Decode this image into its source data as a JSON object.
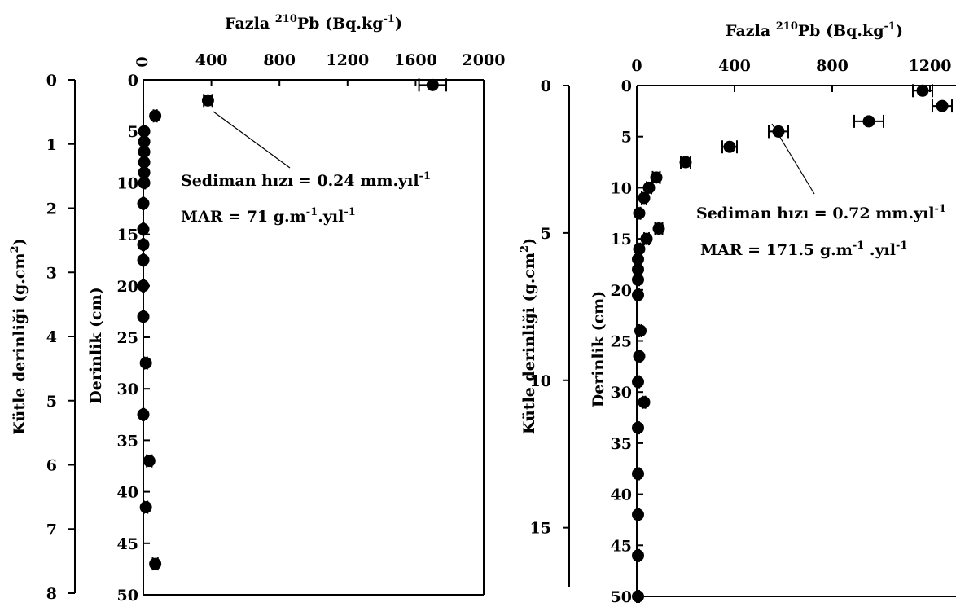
{
  "chart_data": [
    {
      "type": "scatter",
      "top_axis": {
        "label_main": "Fazla ",
        "label_sup": "210",
        "label_rest": "Pb (Bq.kg",
        "label_exp": "-1",
        "label_close": ")",
        "ticks": [
          "0",
          "400",
          "800",
          "1200",
          "1600",
          "2000"
        ],
        "lim": [
          0,
          2000
        ]
      },
      "depth_axis": {
        "label": "Derinlik (cm)",
        "ticks": [
          "0",
          "5",
          "10",
          "15",
          "20",
          "25",
          "30",
          "35",
          "40",
          "45",
          "50"
        ],
        "lim": [
          0,
          50
        ]
      },
      "mass_axis": {
        "label_main": "Kütle derinliği (g.cm",
        "label_exp": "2",
        "label_close": ")",
        "ticks": [
          "0",
          "1",
          "2",
          "3",
          "4",
          "5",
          "6",
          "7",
          "8"
        ],
        "lim": [
          0,
          8
        ]
      },
      "annotation_line1": {
        "text": "Sediman hızı = 0.24 mm.yıl",
        "exp": "-1"
      },
      "annotation_line2": {
        "pre": "MAR = 71 g.m",
        "exp1": "-1",
        "mid": ".yıl",
        "exp2": "-1"
      },
      "points": [
        {
          "x": 1700,
          "depth": 0.5,
          "err": 80
        },
        {
          "x": 380,
          "depth": 2,
          "err": 25
        },
        {
          "x": 70,
          "depth": 3.5,
          "err": 10
        },
        {
          "x": 5,
          "depth": 5,
          "err": 5
        },
        {
          "x": 5,
          "depth": 6,
          "err": 5
        },
        {
          "x": 5,
          "depth": 7,
          "err": 5
        },
        {
          "x": 5,
          "depth": 8,
          "err": 5
        },
        {
          "x": 5,
          "depth": 9,
          "err": 5
        },
        {
          "x": 5,
          "depth": 10,
          "err": 5
        },
        {
          "x": 0,
          "depth": 12,
          "err": 5
        },
        {
          "x": 0,
          "depth": 14.5,
          "err": 5
        },
        {
          "x": 0,
          "depth": 16,
          "err": 5
        },
        {
          "x": 0,
          "depth": 17.5,
          "err": 5
        },
        {
          "x": 0,
          "depth": 20,
          "err": 5
        },
        {
          "x": 0,
          "depth": 23,
          "err": 5
        },
        {
          "x": 15,
          "depth": 27.5,
          "err": 8
        },
        {
          "x": 0,
          "depth": 32.5,
          "err": 5
        },
        {
          "x": 35,
          "depth": 37,
          "err": 15
        },
        {
          "x": 15,
          "depth": 41.5,
          "err": 10
        },
        {
          "x": 70,
          "depth": 47,
          "err": 15
        }
      ]
    },
    {
      "type": "scatter",
      "top_axis": {
        "label_main": "Fazla ",
        "label_sup": "210",
        "label_rest": "Pb (Bq.kg",
        "label_exp": "-1",
        "label_close": ")",
        "ticks": [
          "0",
          "400",
          "800",
          "1200"
        ],
        "lim": [
          0,
          1400
        ]
      },
      "depth_axis": {
        "label": "Derinlik (cm)",
        "ticks": [
          "0",
          "5",
          "10",
          "15",
          "20",
          "25",
          "30",
          "35",
          "40",
          "45",
          "50"
        ],
        "lim": [
          0,
          50
        ]
      },
      "mass_axis": {
        "label_main": "Kütle derinliği (g.cm",
        "label_exp": "2",
        "label_close": ")",
        "ticks": [
          "0",
          "5",
          "10",
          "15"
        ],
        "lim": [
          0,
          17
        ]
      },
      "annotation_line1": {
        "text": "Sediman hızı = 0.72 mm.yıl",
        "exp": "-1"
      },
      "annotation_line2": {
        "pre": "MAR = 171.5 g.m",
        "exp1": "-1",
        "mid": "  .yıl",
        "exp2": "-1"
      },
      "points": [
        {
          "x": 1170,
          "depth": 0.5,
          "err": 40
        },
        {
          "x": 1250,
          "depth": 2,
          "err": 40
        },
        {
          "x": 950,
          "depth": 3.5,
          "err": 60
        },
        {
          "x": 580,
          "depth": 4.5,
          "err": 40
        },
        {
          "x": 380,
          "depth": 6,
          "err": 30
        },
        {
          "x": 200,
          "depth": 7.5,
          "err": 20
        },
        {
          "x": 80,
          "depth": 9,
          "err": 15
        },
        {
          "x": 50,
          "depth": 10,
          "err": 10
        },
        {
          "x": 30,
          "depth": 11,
          "err": 10
        },
        {
          "x": 10,
          "depth": 12.5,
          "err": 5
        },
        {
          "x": 90,
          "depth": 14,
          "err": 15
        },
        {
          "x": 40,
          "depth": 15,
          "err": 10
        },
        {
          "x": 10,
          "depth": 16,
          "err": 5
        },
        {
          "x": 5,
          "depth": 17,
          "err": 5
        },
        {
          "x": 5,
          "depth": 18,
          "err": 5
        },
        {
          "x": 5,
          "depth": 19,
          "err": 5
        },
        {
          "x": 5,
          "depth": 20.5,
          "err": 5
        },
        {
          "x": 15,
          "depth": 24,
          "err": 5
        },
        {
          "x": 10,
          "depth": 26.5,
          "err": 5
        },
        {
          "x": 5,
          "depth": 29,
          "err": 5
        },
        {
          "x": 30,
          "depth": 31,
          "err": 5
        },
        {
          "x": 5,
          "depth": 33.5,
          "err": 5
        },
        {
          "x": 5,
          "depth": 38,
          "err": 5
        },
        {
          "x": 5,
          "depth": 42,
          "err": 5
        },
        {
          "x": 5,
          "depth": 46,
          "err": 5
        },
        {
          "x": 5,
          "depth": 50,
          "err": 5
        }
      ]
    }
  ]
}
